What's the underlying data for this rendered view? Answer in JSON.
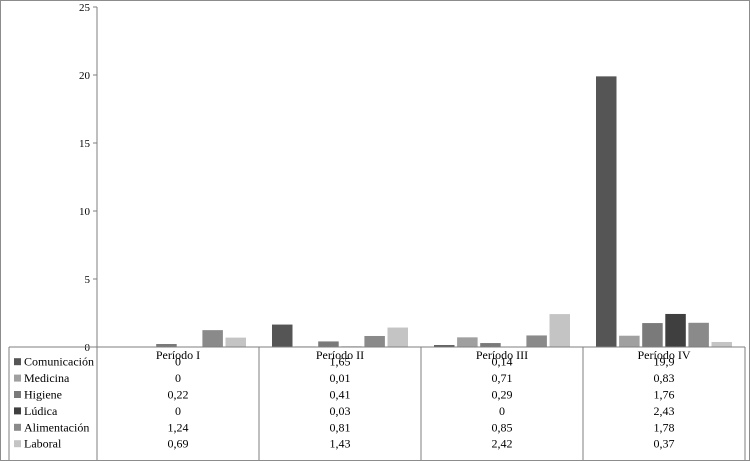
{
  "chart_data": {
    "type": "bar",
    "title": "",
    "xlabel": "",
    "ylabel": "",
    "ylim": [
      0,
      25
    ],
    "yticks": [
      0,
      5,
      10,
      15,
      20,
      25
    ],
    "grid": false,
    "legend": "table-left",
    "categories": [
      "Período I",
      "Período II",
      "Período III",
      "Período IV"
    ],
    "series": [
      {
        "name": "Comunicación",
        "color": "#555555",
        "values": [
          0,
          1.65,
          0.14,
          19.9
        ],
        "labels": [
          "0",
          "1,65",
          "0,14",
          "19,9"
        ]
      },
      {
        "name": "Medicina",
        "color": "#a0a0a0",
        "values": [
          0,
          0.01,
          0.71,
          0.83
        ],
        "labels": [
          "0",
          "0,01",
          "0,71",
          "0,83"
        ]
      },
      {
        "name": "Higiene",
        "color": "#7a7a7a",
        "values": [
          0.22,
          0.41,
          0.29,
          1.76
        ],
        "labels": [
          "0,22",
          "0,41",
          "0,29",
          "1,76"
        ]
      },
      {
        "name": "Lúdica",
        "color": "#3f3f3f",
        "values": [
          0,
          0.03,
          0,
          2.43
        ],
        "labels": [
          "0",
          "0,03",
          "0",
          "2,43"
        ]
      },
      {
        "name": "Alimentación",
        "color": "#8a8a8a",
        "values": [
          1.24,
          0.81,
          0.85,
          1.78
        ],
        "labels": [
          "1,24",
          "0,81",
          "0,85",
          "1,78"
        ]
      },
      {
        "name": "Laboral",
        "color": "#c4c4c4",
        "values": [
          0.69,
          1.43,
          2.42,
          0.37
        ],
        "labels": [
          "0,69",
          "1,43",
          "2,42",
          "0,37"
        ]
      }
    ]
  }
}
